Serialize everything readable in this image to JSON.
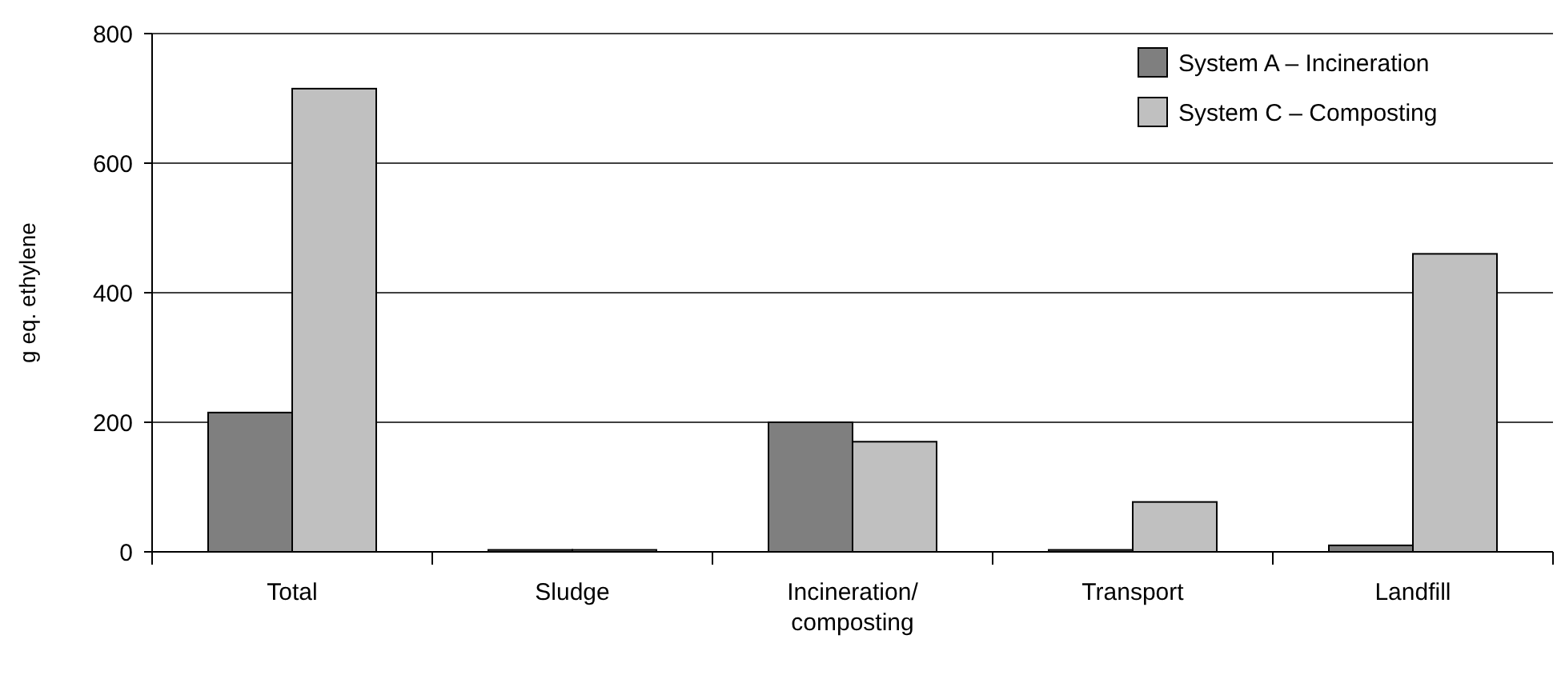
{
  "chart_data": {
    "type": "bar",
    "ylabel": "g eq. ethylene",
    "categories": [
      "Total",
      "Sludge",
      "Incineration/\ncomposting",
      "Transport",
      "Landfill"
    ],
    "series": [
      {
        "name": "System A – Incineration",
        "color": "#7f7f7f",
        "values": [
          215,
          3,
          200,
          3,
          10
        ]
      },
      {
        "name": "System C – Composting",
        "color": "#c0c0c0",
        "values": [
          715,
          3,
          170,
          77,
          460
        ]
      }
    ],
    "ylim": [
      0,
      800
    ],
    "yticks": [
      0,
      200,
      400,
      600,
      800
    ],
    "grid": "y",
    "legend": "top right"
  }
}
